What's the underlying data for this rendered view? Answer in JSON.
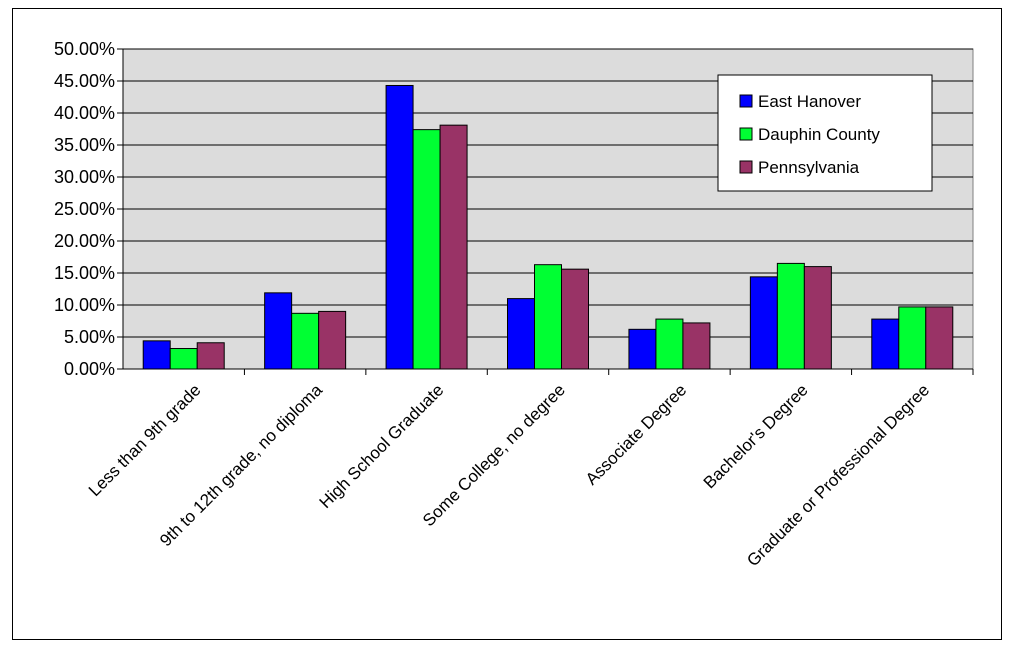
{
  "chart_data": {
    "type": "bar",
    "title": "",
    "xlabel": "",
    "ylabel": "",
    "ylim": [
      0,
      0.5
    ],
    "y_ticks": [
      "0.00%",
      "5.00%",
      "10.00%",
      "15.00%",
      "20.00%",
      "25.00%",
      "30.00%",
      "35.00%",
      "40.00%",
      "45.00%",
      "50.00%"
    ],
    "y_tick_values": [
      0,
      0.05,
      0.1,
      0.15,
      0.2,
      0.25,
      0.3,
      0.35,
      0.4,
      0.45,
      0.5
    ],
    "grid": true,
    "legend_position": "top-right",
    "plot_background": "#dcdcdc",
    "categories": [
      "Less than 9th grade",
      "9th to 12th grade, no diploma",
      "High School Graduate",
      "Some College, no degree",
      "Associate Degree",
      "Bachelor's Degree",
      "Graduate or Professional Degree"
    ],
    "series": [
      {
        "name": "East Hanover",
        "color": "#0000ff",
        "values": [
          0.044,
          0.119,
          0.443,
          0.11,
          0.062,
          0.144,
          0.078
        ]
      },
      {
        "name": "Dauphin County",
        "color": "#00ff33",
        "values": [
          0.032,
          0.087,
          0.374,
          0.163,
          0.078,
          0.165,
          0.097
        ]
      },
      {
        "name": "Pennsylvania",
        "color": "#993366",
        "values": [
          0.041,
          0.09,
          0.381,
          0.156,
          0.072,
          0.16,
          0.097
        ]
      }
    ]
  }
}
